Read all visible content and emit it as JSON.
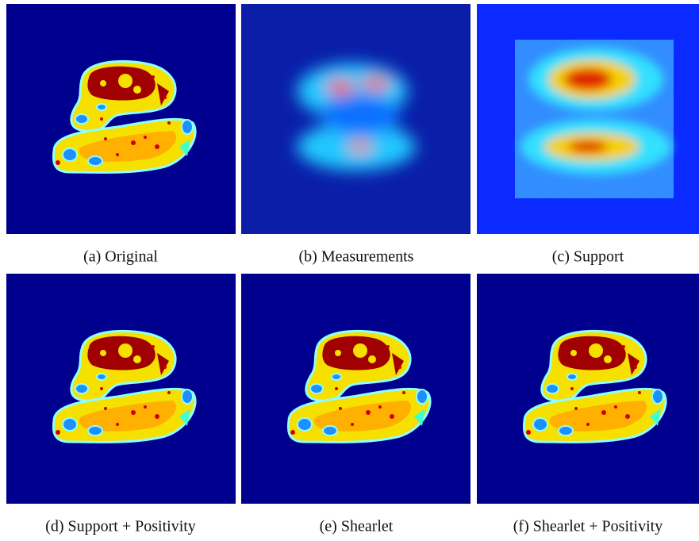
{
  "panels": [
    {
      "caption": "(a) Original"
    },
    {
      "caption": "(b) Measurements"
    },
    {
      "caption": "(c) Support"
    },
    {
      "caption": "(d) Support + Positivity"
    },
    {
      "caption": "(e) Shearlet"
    },
    {
      "caption": "(f) Shearlet + Positivity"
    }
  ]
}
